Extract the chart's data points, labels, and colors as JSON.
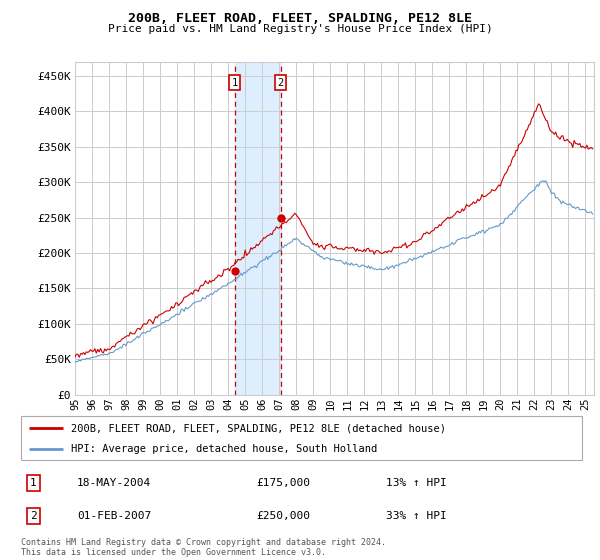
{
  "title": "200B, FLEET ROAD, FLEET, SPALDING, PE12 8LE",
  "subtitle": "Price paid vs. HM Land Registry's House Price Index (HPI)",
  "ylabel_ticks": [
    "£0",
    "£50K",
    "£100K",
    "£150K",
    "£200K",
    "£250K",
    "£300K",
    "£350K",
    "£400K",
    "£450K"
  ],
  "ytick_values": [
    0,
    50000,
    100000,
    150000,
    200000,
    250000,
    300000,
    350000,
    400000,
    450000
  ],
  "ylim": [
    0,
    470000
  ],
  "xlim_start": 1995.0,
  "xlim_end": 2025.5,
  "transaction1_date": 2004.38,
  "transaction1_price": 175000,
  "transaction1_label": "1",
  "transaction1_text": "18-MAY-2004",
  "transaction1_amount": "£175,000",
  "transaction1_hpi": "13% ↑ HPI",
  "transaction2_date": 2007.08,
  "transaction2_price": 250000,
  "transaction2_label": "2",
  "transaction2_text": "01-FEB-2007",
  "transaction2_amount": "£250,000",
  "transaction2_hpi": "33% ↑ HPI",
  "red_line_color": "#cc0000",
  "blue_line_color": "#6699cc",
  "grid_color": "#cccccc",
  "background_color": "#ffffff",
  "shaded_region_color": "#ddeeff",
  "dashed_line_color": "#cc0000",
  "legend_line1": "200B, FLEET ROAD, FLEET, SPALDING, PE12 8LE (detached house)",
  "legend_line2": "HPI: Average price, detached house, South Holland",
  "footer": "Contains HM Land Registry data © Crown copyright and database right 2024.\nThis data is licensed under the Open Government Licence v3.0.",
  "xtick_years": [
    1995,
    1996,
    1997,
    1998,
    1999,
    2000,
    2001,
    2002,
    2003,
    2004,
    2005,
    2006,
    2007,
    2008,
    2009,
    2010,
    2011,
    2012,
    2013,
    2014,
    2015,
    2016,
    2017,
    2018,
    2019,
    2020,
    2021,
    2022,
    2023,
    2024,
    2025
  ]
}
